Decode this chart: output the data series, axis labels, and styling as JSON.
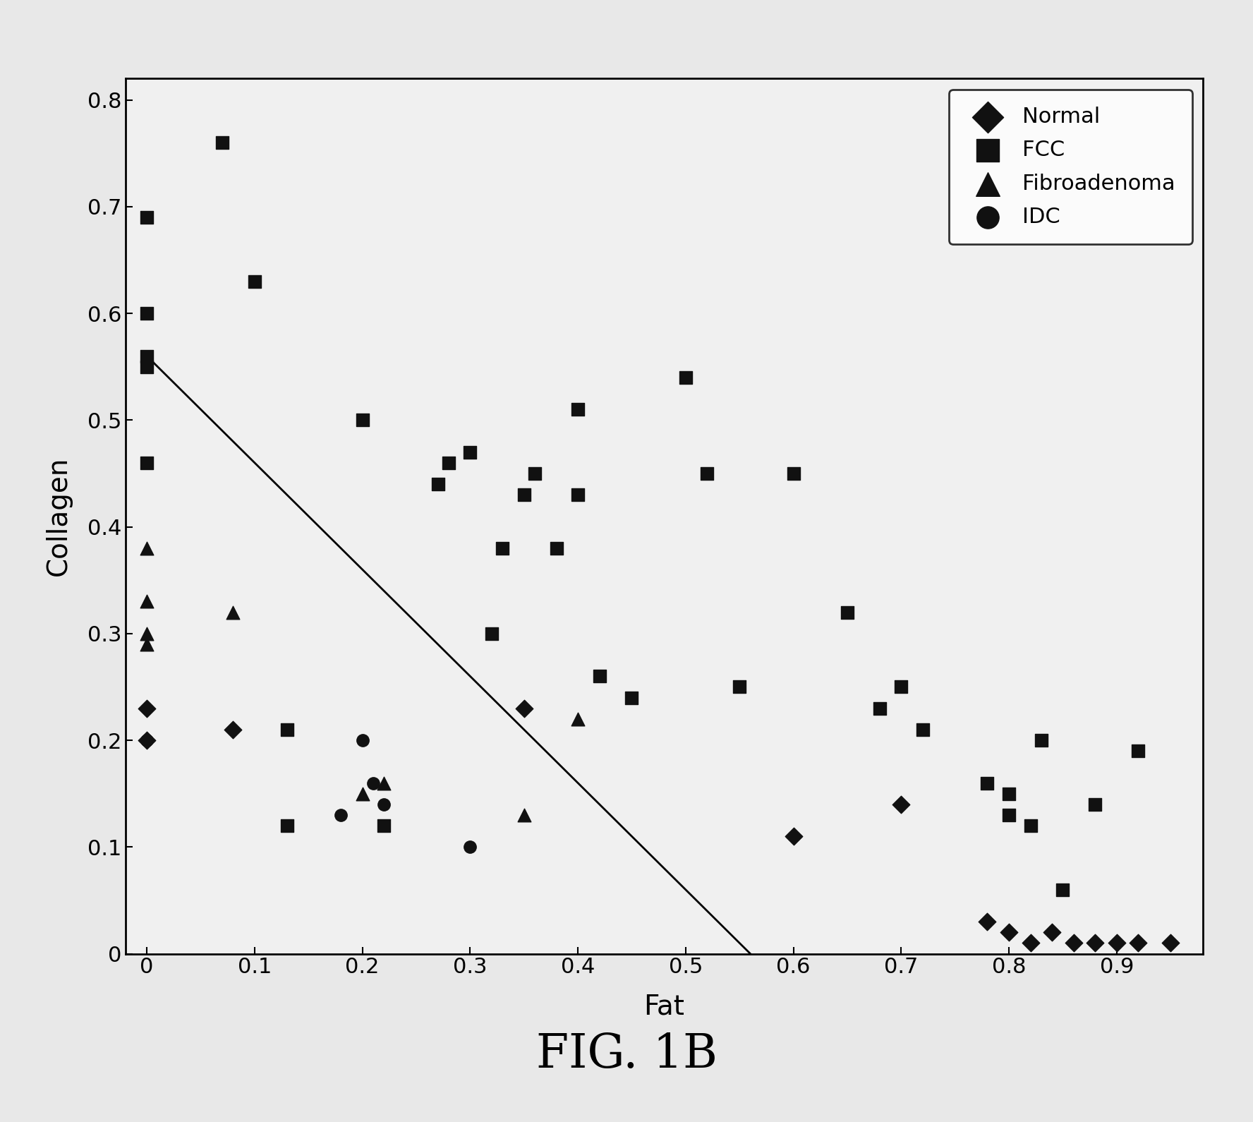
{
  "title": "FIG. 1B",
  "xlabel": "Fat",
  "ylabel": "Collagen",
  "xlim": [
    -0.02,
    0.98
  ],
  "ylim": [
    0,
    0.82
  ],
  "xticks": [
    0,
    0.1,
    0.2,
    0.3,
    0.4,
    0.5,
    0.6,
    0.7,
    0.8,
    0.9
  ],
  "yticks": [
    0,
    0.1,
    0.2,
    0.3,
    0.4,
    0.5,
    0.6,
    0.7,
    0.8
  ],
  "line_x": [
    0,
    0.56
  ],
  "line_y": [
    0.56,
    0
  ],
  "normal": {
    "fat": [
      0.0,
      0.0,
      0.08,
      0.35,
      0.6,
      0.7,
      0.78,
      0.8,
      0.82,
      0.84,
      0.86,
      0.88,
      0.9,
      0.92,
      0.95
    ],
    "collagen": [
      0.23,
      0.2,
      0.21,
      0.23,
      0.11,
      0.14,
      0.03,
      0.02,
      0.01,
      0.02,
      0.01,
      0.01,
      0.01,
      0.01,
      0.01
    ]
  },
  "fcc": {
    "fat": [
      0.0,
      0.0,
      0.0,
      0.0,
      0.0,
      0.07,
      0.1,
      0.13,
      0.13,
      0.2,
      0.22,
      0.27,
      0.28,
      0.3,
      0.32,
      0.33,
      0.35,
      0.36,
      0.38,
      0.4,
      0.4,
      0.42,
      0.45,
      0.5,
      0.52,
      0.55,
      0.6,
      0.65,
      0.68,
      0.7,
      0.72,
      0.78,
      0.8,
      0.8,
      0.82,
      0.83,
      0.85,
      0.88,
      0.92
    ],
    "collagen": [
      0.69,
      0.6,
      0.56,
      0.55,
      0.46,
      0.76,
      0.63,
      0.12,
      0.21,
      0.5,
      0.12,
      0.44,
      0.46,
      0.47,
      0.3,
      0.38,
      0.43,
      0.45,
      0.38,
      0.51,
      0.43,
      0.26,
      0.24,
      0.54,
      0.45,
      0.25,
      0.45,
      0.32,
      0.23,
      0.25,
      0.21,
      0.16,
      0.15,
      0.13,
      0.12,
      0.2,
      0.06,
      0.14,
      0.19
    ]
  },
  "fibroadenoma": {
    "fat": [
      0.0,
      0.0,
      0.0,
      0.0,
      0.08,
      0.2,
      0.22,
      0.35,
      0.4
    ],
    "collagen": [
      0.38,
      0.33,
      0.3,
      0.29,
      0.32,
      0.15,
      0.16,
      0.13,
      0.22
    ]
  },
  "idc": {
    "fat": [
      0.0,
      0.18,
      0.2,
      0.21,
      0.22,
      0.3
    ],
    "collagen": [
      0.2,
      0.13,
      0.2,
      0.16,
      0.14,
      0.1
    ]
  },
  "background_color": "#e8e8e8",
  "plot_bg_color": "#f0f0f0",
  "marker_color": "#111111",
  "marker_size": 120,
  "legend_loc": "upper right",
  "title_fontsize": 48
}
